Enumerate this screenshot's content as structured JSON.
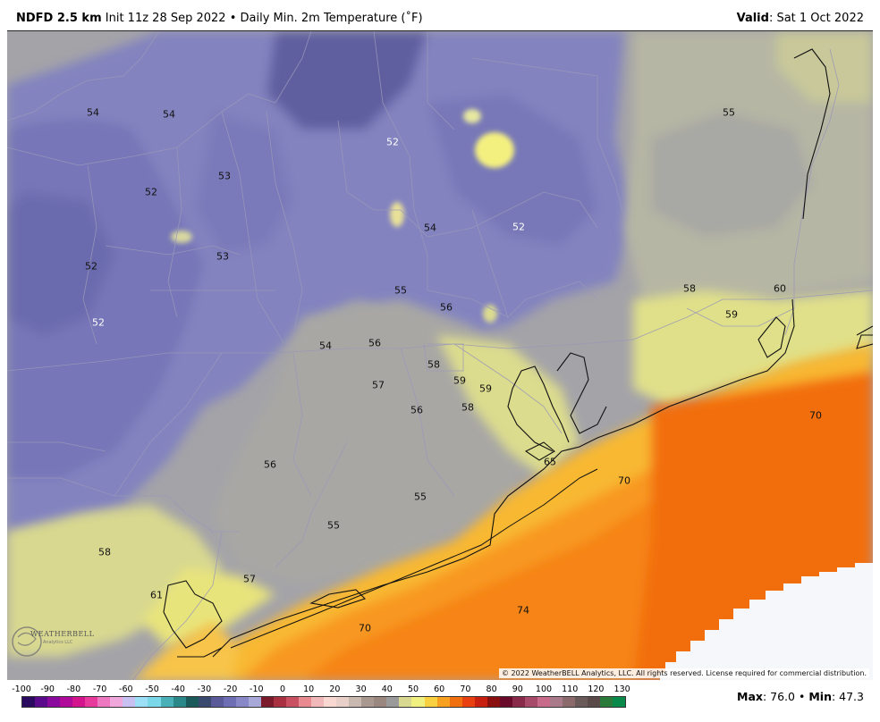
{
  "header": {
    "product": "NDFD 2.5 km",
    "init": "Init 11z 28 Sep 2022",
    "separator": "•",
    "field": "Daily Min. 2m Temperature (˚F)",
    "valid_label": "Valid",
    "valid_value": ": Sat 1 Oct 2022"
  },
  "map": {
    "labels": [
      {
        "text": "54"
      },
      {
        "text": "54"
      },
      {
        "text": "53"
      },
      {
        "text": "52"
      },
      {
        "text": "53"
      },
      {
        "text": "52"
      },
      {
        "text": "52"
      },
      {
        "text": "52"
      },
      {
        "text": "54"
      },
      {
        "text": "52"
      },
      {
        "text": "55"
      },
      {
        "text": "55"
      },
      {
        "text": "56"
      },
      {
        "text": "54"
      },
      {
        "text": "56"
      },
      {
        "text": "58"
      },
      {
        "text": "59"
      },
      {
        "text": "59"
      },
      {
        "text": "57"
      },
      {
        "text": "56"
      },
      {
        "text": "58"
      },
      {
        "text": "58"
      },
      {
        "text": "59"
      },
      {
        "text": "60"
      },
      {
        "text": "70"
      },
      {
        "text": "65"
      },
      {
        "text": "70"
      },
      {
        "text": "56"
      },
      {
        "text": "55"
      },
      {
        "text": "55"
      },
      {
        "text": "58"
      },
      {
        "text": "57"
      },
      {
        "text": "61"
      },
      {
        "text": "74"
      },
      {
        "text": "70"
      }
    ],
    "copyright": "© 2022 WeatherBELL Analytics, LLC. All rights reserved. License required for commercial distribution.",
    "logo_text": "WEATHERBELL",
    "logo_sub": "Analytics LLC"
  },
  "legend": {
    "ticks": [
      "-100",
      "-90",
      "-80",
      "-70",
      "-60",
      "-50",
      "-40",
      "-30",
      "-20",
      "-10",
      "0",
      "10",
      "20",
      "30",
      "40",
      "50",
      "60",
      "70",
      "80",
      "90",
      "100",
      "110",
      "120",
      "130"
    ],
    "colors": [
      "#2a0a5e",
      "#5a0a8a",
      "#8a0a9e",
      "#b00a9a",
      "#d4148c",
      "#e83a9c",
      "#ee78c0",
      "#f0a8dc",
      "#c8c0f0",
      "#9ce0f8",
      "#7ad8e8",
      "#4ab0b8",
      "#2a8888",
      "#1a5a5a",
      "#3a4a6e",
      "#5a5a9a",
      "#6e6eb4",
      "#8888c8",
      "#a8a8d8",
      "#7a1a2a",
      "#a83040",
      "#c85060",
      "#e88a90",
      "#f0b8b8",
      "#f8d8d0",
      "#e8d0c8",
      "#c8b8b0",
      "#a89890",
      "#9a8880",
      "#9a9a9a",
      "#d8d890",
      "#f0f080",
      "#f8d040",
      "#f8a020",
      "#f07010",
      "#e84010",
      "#c82010",
      "#8a1010",
      "#6a0a2a",
      "#8a2a4a",
      "#a84a6a",
      "#c86a8a",
      "#a87a8a",
      "#8a6a6a",
      "#6a5a5a",
      "#5a4a4a",
      "#2a7a3a",
      "#0a8a4a"
    ],
    "max_label": "Max",
    "max_value": ": 76.0",
    "sep": "•",
    "min_label": "Min",
    "min_value": ": 47.3"
  }
}
